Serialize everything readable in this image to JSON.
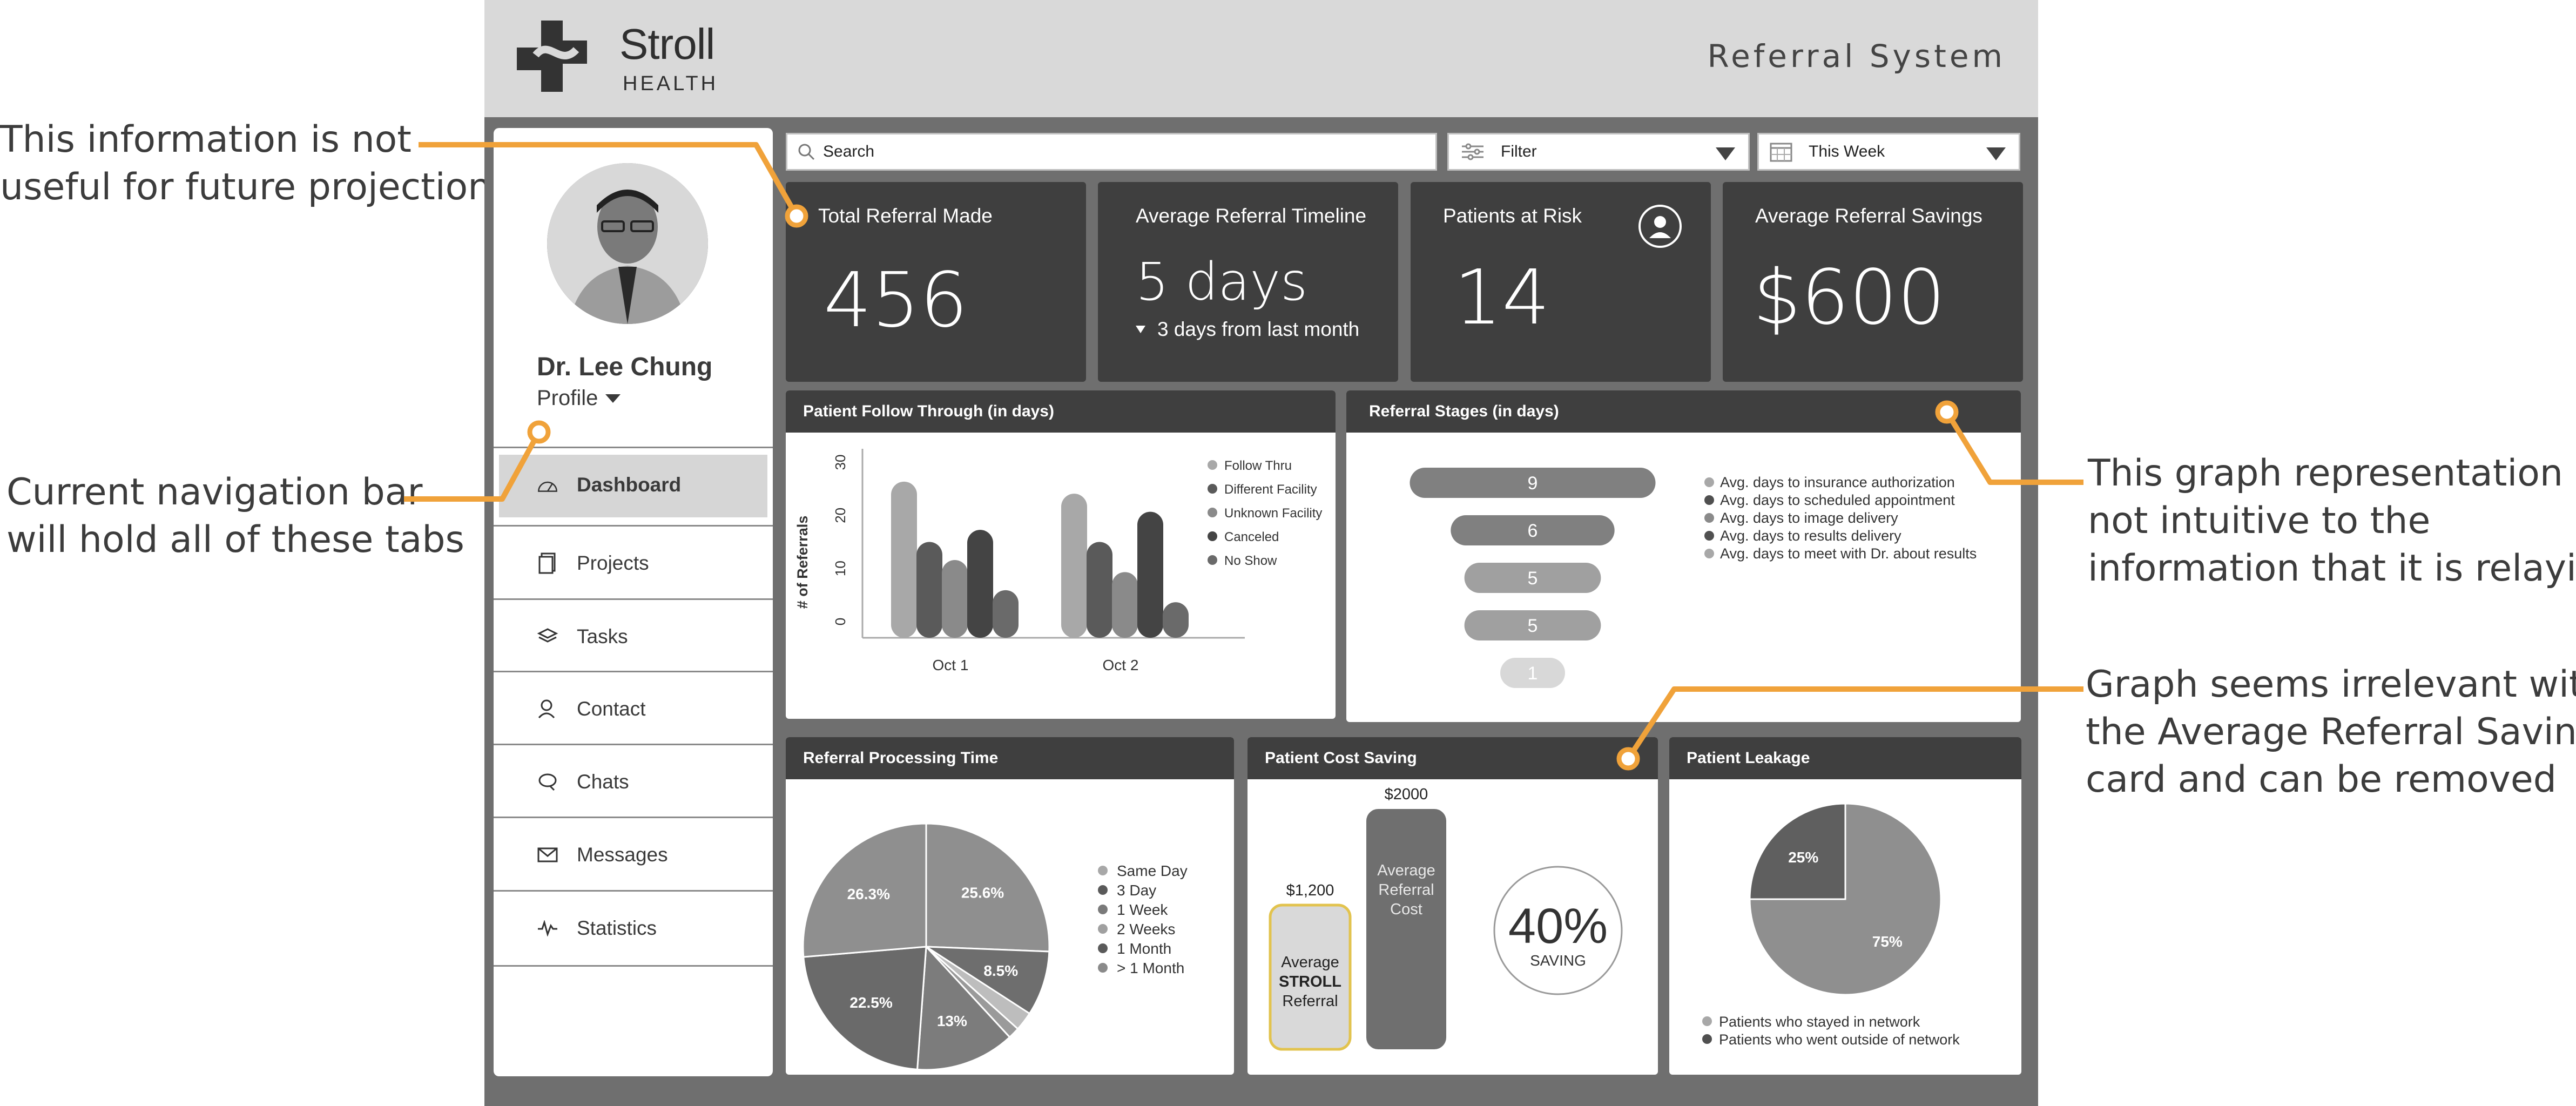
{
  "annotations": {
    "info_not_useful": [
      "This information is not",
      "useful for future projections"
    ],
    "nav_bar": [
      "Current navigation bar",
      "will hold all of these tabs"
    ],
    "graph_not_intuitive": [
      "This graph representation is",
      "not intuitive to the",
      "information that it is relaying"
    ],
    "graph_irrelevant": [
      "Graph seems irrelevant with",
      "the Average Referral Savings",
      "card and can be removed"
    ],
    "accent_color": "#f0a23a"
  },
  "header": {
    "logo_name": "Stroll",
    "logo_sub": "HEALTH",
    "system_title": "Referral System"
  },
  "profile": {
    "name": "Dr. Lee Chung",
    "menu_label": "Profile"
  },
  "nav": [
    {
      "label": "Dashboard",
      "icon": "gauge-icon",
      "active": true
    },
    {
      "label": "Projects",
      "icon": "document-icon"
    },
    {
      "label": "Tasks",
      "icon": "layers-icon"
    },
    {
      "label": "Contact",
      "icon": "contact-icon"
    },
    {
      "label": "Chats",
      "icon": "chat-icon"
    },
    {
      "label": "Messages",
      "icon": "envelope-icon"
    },
    {
      "label": "Statistics",
      "icon": "pulse-icon"
    }
  ],
  "toolbar": {
    "search_placeholder": "Search",
    "filter_label": "Filter",
    "date_label": "This Week"
  },
  "kpis": {
    "total_referrals": {
      "title": "Total Referral Made",
      "value": "456"
    },
    "avg_timeline": {
      "title": "Average Referral Timeline",
      "value": "5 days",
      "sub": "3 days from last month"
    },
    "at_risk": {
      "title": "Patients at Risk",
      "value": "14"
    },
    "avg_savings": {
      "title": "Average Referral Savings",
      "value": "$600"
    }
  },
  "panels": {
    "follow_through": "Patient Follow Through (in days)",
    "referral_stages": "Referral Stages (in days)",
    "processing_time": "Referral Processing Time",
    "cost_saving": "Patient Cost Saving",
    "leakage": "Patient Leakage"
  },
  "chart_data": [
    {
      "type": "bar",
      "title": "Patient Follow Through (in days)",
      "ylabel": "# of Referrals",
      "categories": [
        "Oct 1",
        "Oct 2"
      ],
      "ylim": [
        0,
        30
      ],
      "yticks": [
        "0",
        "10",
        "20",
        "30"
      ],
      "series": [
        {
          "name": "Follow Thru",
          "color": "#a8a8a8",
          "values": [
            25,
            23
          ]
        },
        {
          "name": "Different Facility",
          "color": "#5a5a5a",
          "values": [
            15,
            15
          ]
        },
        {
          "name": "Unknown Facility",
          "color": "#8a8a8a",
          "values": [
            12,
            10
          ]
        },
        {
          "name": "Canceled",
          "color": "#444444",
          "values": [
            17,
            20
          ]
        },
        {
          "name": "No Show",
          "color": "#6a6a6a",
          "values": [
            7,
            5
          ]
        }
      ]
    },
    {
      "type": "bar",
      "title": "Referral Stages (in days)",
      "values": [
        9,
        6,
        5,
        5,
        1
      ],
      "labels": [
        "9",
        "6",
        "5",
        "5",
        "1"
      ],
      "colors": [
        "#808080",
        "#808080",
        "#a0a0a0",
        "#a0a0a0",
        "#d8d8d8"
      ],
      "legend": [
        {
          "label": "Avg. days to insurance authorization",
          "color": "#a8a8a8"
        },
        {
          "label": "Avg. days to scheduled appointment",
          "color": "#505050"
        },
        {
          "label": "Avg. days to image delivery",
          "color": "#8a8a8a"
        },
        {
          "label": "Avg. days to results delivery",
          "color": "#505050"
        },
        {
          "label": "Avg. days to meet with Dr. about results",
          "color": "#a8a8a8"
        }
      ]
    },
    {
      "type": "pie",
      "title": "Referral Processing Time",
      "slices": [
        {
          "label": "25.6%",
          "value": 25.6,
          "color": "#8f8f8f"
        },
        {
          "label": "8.5%",
          "value": 8.5,
          "color": "#6e6e6e"
        },
        {
          "label": "",
          "value": 2.5,
          "color": "#bdbdbd"
        },
        {
          "label": "",
          "value": 1.5,
          "color": "#9a9a9a"
        },
        {
          "label": "13%",
          "value": 13,
          "color": "#7c7c7c"
        },
        {
          "label": "22.5%",
          "value": 22.5,
          "color": "#6a6a6a"
        },
        {
          "label": "26.3%",
          "value": 26.3,
          "color": "#8f8f8f"
        }
      ],
      "legend": [
        {
          "label": "Same Day",
          "color": "#a8a8a8"
        },
        {
          "label": "3 Day",
          "color": "#5a5a5a"
        },
        {
          "label": "1 Week",
          "color": "#7a7a7a"
        },
        {
          "label": "2 Weeks",
          "color": "#a0a0a0"
        },
        {
          "label": "1 Month",
          "color": "#5a5a5a"
        },
        {
          "label": "> 1 Month",
          "color": "#8a8a8a"
        }
      ]
    },
    {
      "type": "bar",
      "title": "Patient Cost Saving",
      "bars": [
        {
          "name": "Average STROLL Referral",
          "lines": [
            "Average",
            "STROLL",
            "Referral"
          ],
          "value": 1200,
          "label": "$1,200"
        },
        {
          "name": "Average Referral Cost",
          "lines": [
            "Average",
            "Referral",
            "Cost"
          ],
          "value": 2000,
          "label": "$2000"
        }
      ],
      "saving_percent": "40%",
      "saving_label": "SAVING"
    },
    {
      "type": "pie",
      "title": "Patient Leakage",
      "slices": [
        {
          "label": "75%",
          "value": 75,
          "color": "#8f8f8f"
        },
        {
          "label": "25%",
          "value": 25,
          "color": "#5f5f5f"
        }
      ],
      "legend": [
        {
          "label": "Patients who stayed in network",
          "color": "#a8a8a8"
        },
        {
          "label": "Patients who went outside of network",
          "color": "#505050"
        }
      ]
    }
  ]
}
